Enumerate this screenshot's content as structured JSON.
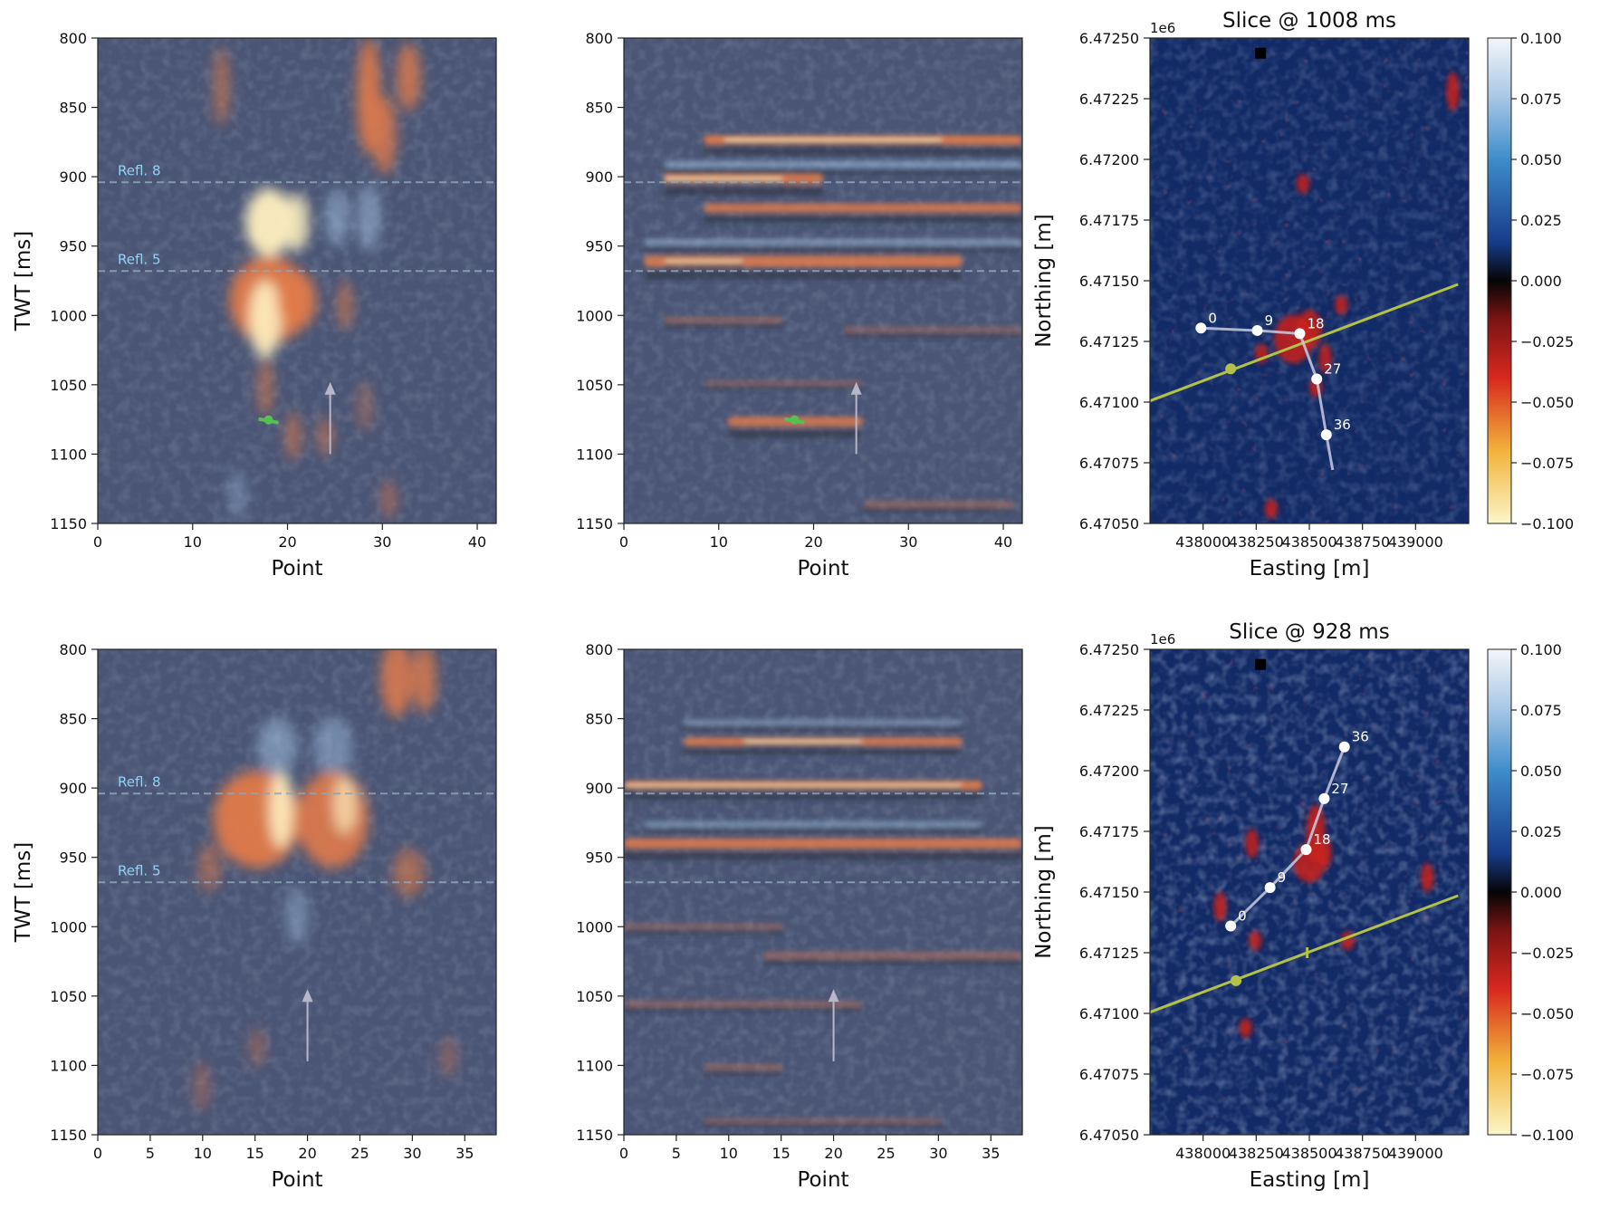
{
  "figure": {
    "colorbar_ticks": [
      "0.100",
      "0.075",
      "0.050",
      "0.025",
      "0.000",
      "−0.025",
      "−0.050",
      "−0.075",
      "−0.100"
    ],
    "colors": {
      "background": "#4a5575",
      "dark_trough": "#2c2f3a",
      "positive_amp": "#e07a4a",
      "bright_amp": "#fff0c0",
      "blue_amp": "#a7c8e8",
      "map_background": "#122a66",
      "well_track": "#b3c04a",
      "horizon_dash": "#8ea6b8",
      "refl_label": "#8fd3f5",
      "path_marker": "#ffffff",
      "arrow": "#b7b7c9",
      "pick_marker": "#56c052"
    }
  },
  "chart_data": [
    {
      "type": "heatmap",
      "panel": "row1-col1",
      "xlabel": "Point",
      "ylabel": "TWT [ms]",
      "xlim": [
        0,
        42
      ],
      "ylim": [
        1150,
        800
      ],
      "xticks": [
        0,
        10,
        20,
        30,
        40
      ],
      "yticks": [
        800,
        850,
        900,
        950,
        1000,
        1050,
        1100,
        1150
      ],
      "reflectors": [
        {
          "label": "Refl. 8",
          "twt": 904
        },
        {
          "label": "Refl. 5",
          "twt": 968
        }
      ],
      "arrow": {
        "x": 24.5,
        "from_twt": 1100,
        "to_twt": 1048
      },
      "pick": {
        "x": 18,
        "twt": 1076
      }
    },
    {
      "type": "heatmap",
      "panel": "row1-col2",
      "xlabel": "Point",
      "ylabel": "",
      "xlim": [
        0,
        42
      ],
      "ylim": [
        1150,
        800
      ],
      "xticks": [
        0,
        10,
        20,
        30,
        40
      ],
      "yticks": [
        800,
        850,
        900,
        950,
        1000,
        1050,
        1100,
        1150
      ],
      "reflectors": [
        {
          "label": "",
          "twt": 904
        },
        {
          "label": "",
          "twt": 968
        }
      ],
      "arrow": {
        "x": 24.5,
        "from_twt": 1100,
        "to_twt": 1048
      },
      "pick": {
        "x": 18,
        "twt": 1076
      }
    },
    {
      "type": "heatmap",
      "panel": "row1-col3",
      "title": "Slice @ 1008 ms",
      "xlabel": "Easting [m]",
      "ylabel": "Northing [m]",
      "y_offset_label": "1e6",
      "xlim": [
        437750,
        439250
      ],
      "ylim": [
        6.4705,
        6.4725
      ],
      "xticks": [
        438000,
        438250,
        438500,
        438750,
        439000
      ],
      "yticks": [
        6.4725,
        6.47225,
        6.472,
        6.47175,
        6.4715,
        6.47125,
        6.471,
        6.47075,
        6.4705
      ],
      "ytick_labels": [
        "6.47250",
        "6.47225",
        "6.47200",
        "6.47175",
        "6.47150",
        "6.47125",
        "6.47100",
        "6.47075",
        "6.47050"
      ],
      "colorbar": {
        "min": -0.1,
        "max": 0.1
      },
      "path": [
        {
          "label": "0",
          "easting": 437990,
          "northing": 6.471305
        },
        {
          "label": "9",
          "easting": 438255,
          "northing": 6.471295
        },
        {
          "label": "18",
          "easting": 438455,
          "northing": 6.471282
        },
        {
          "label": "27",
          "easting": 438535,
          "northing": 6.471095
        },
        {
          "label": "36",
          "easting": 438580,
          "northing": 6.470865
        }
      ],
      "path_end": {
        "easting": 438610,
        "northing": 6.47072
      },
      "well_line": {
        "start": [
          437750,
          6.471005
        ],
        "end": [
          439200,
          6.471485
        ]
      },
      "well_point": {
        "easting": 438130,
        "northing": 6.471137
      }
    },
    {
      "type": "heatmap",
      "panel": "row2-col1",
      "xlabel": "Point",
      "ylabel": "TWT [ms]",
      "xlim": [
        0,
        38
      ],
      "ylim": [
        1150,
        800
      ],
      "xticks": [
        0,
        5,
        10,
        15,
        20,
        25,
        30,
        35
      ],
      "yticks": [
        800,
        850,
        900,
        950,
        1000,
        1050,
        1100,
        1150
      ],
      "reflectors": [
        {
          "label": "Refl. 8",
          "twt": 904
        },
        {
          "label": "Refl. 5",
          "twt": 968
        }
      ],
      "arrow": {
        "x": 20,
        "from_twt": 1097,
        "to_twt": 1045
      }
    },
    {
      "type": "heatmap",
      "panel": "row2-col2",
      "xlabel": "Point",
      "ylabel": "",
      "xlim": [
        0,
        38
      ],
      "ylim": [
        1150,
        800
      ],
      "xticks": [
        0,
        5,
        10,
        15,
        20,
        25,
        30,
        35
      ],
      "yticks": [
        800,
        850,
        900,
        950,
        1000,
        1050,
        1100,
        1150
      ],
      "reflectors": [
        {
          "label": "",
          "twt": 904
        },
        {
          "label": "",
          "twt": 968
        }
      ],
      "arrow": {
        "x": 20,
        "from_twt": 1097,
        "to_twt": 1045
      }
    },
    {
      "type": "heatmap",
      "panel": "row2-col3",
      "title": "Slice @ 928 ms",
      "xlabel": "Easting [m]",
      "ylabel": "Northing [m]",
      "y_offset_label": "1e6",
      "xlim": [
        437750,
        439250
      ],
      "ylim": [
        6.4705,
        6.4725
      ],
      "xticks": [
        438000,
        438250,
        438500,
        438750,
        439000
      ],
      "yticks": [
        6.4725,
        6.47225,
        6.472,
        6.47175,
        6.4715,
        6.47125,
        6.471,
        6.47075,
        6.4705
      ],
      "ytick_labels": [
        "6.47250",
        "6.47225",
        "6.47200",
        "6.47175",
        "6.47150",
        "6.47125",
        "6.47100",
        "6.47075",
        "6.47050"
      ],
      "colorbar": {
        "min": -0.1,
        "max": 0.1
      },
      "path": [
        {
          "label": "0",
          "easting": 438130,
          "northing": 6.47136
        },
        {
          "label": "9",
          "easting": 438315,
          "northing": 6.471518
        },
        {
          "label": "18",
          "easting": 438485,
          "northing": 6.471675
        },
        {
          "label": "27",
          "easting": 438570,
          "northing": 6.471885
        },
        {
          "label": "36",
          "easting": 438665,
          "northing": 6.472098
        }
      ],
      "well_line": {
        "start": [
          437750,
          6.471005
        ],
        "end": [
          439200,
          6.471485
        ]
      },
      "well_point": {
        "easting": 438155,
        "northing": 6.471135
      },
      "well_tick": {
        "easting": 438490,
        "northing": 6.47125
      }
    }
  ]
}
